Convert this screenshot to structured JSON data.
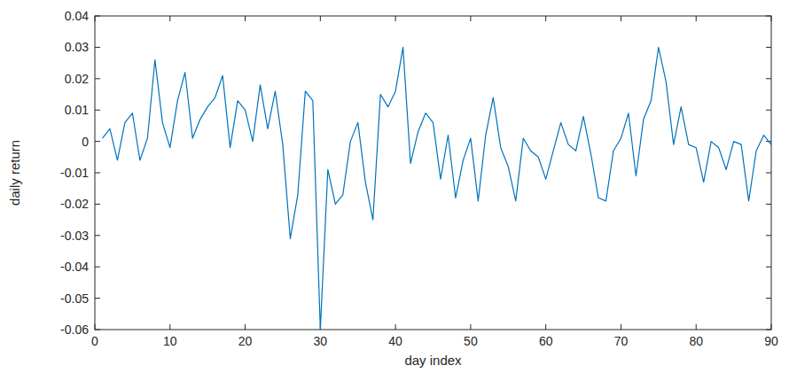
{
  "chart_data": {
    "type": "line",
    "x_label": "day index",
    "y_label": "daily return",
    "color": "#0072bd",
    "x": [
      1,
      2,
      3,
      4,
      5,
      6,
      7,
      8,
      9,
      10,
      11,
      12,
      13,
      14,
      15,
      16,
      17,
      18,
      19,
      20,
      21,
      22,
      23,
      24,
      25,
      26,
      27,
      28,
      29,
      30,
      31,
      32,
      33,
      34,
      35,
      36,
      37,
      38,
      39,
      40,
      41,
      42,
      43,
      44,
      45,
      46,
      47,
      48,
      49,
      50,
      51,
      52,
      53,
      54,
      55,
      56,
      57,
      58,
      59,
      60,
      61,
      62,
      63,
      64,
      65,
      66,
      67,
      68,
      69,
      70,
      71,
      72,
      73,
      74,
      75,
      76,
      77,
      78,
      79,
      80,
      81,
      82,
      83,
      84,
      85,
      86,
      87,
      88,
      89,
      90
    ],
    "values": [
      0.001,
      0.004,
      -0.006,
      0.006,
      0.009,
      -0.006,
      0.001,
      0.026,
      0.006,
      -0.002,
      0.013,
      0.022,
      0.001,
      0.007,
      0.011,
      0.014,
      0.021,
      -0.002,
      0.013,
      0.01,
      0.0,
      0.018,
      0.004,
      0.016,
      -0.001,
      -0.031,
      -0.017,
      0.016,
      0.013,
      -0.06,
      -0.009,
      -0.02,
      -0.017,
      0.0,
      0.006,
      -0.013,
      -0.025,
      0.015,
      0.011,
      0.016,
      0.03,
      -0.007,
      0.003,
      0.009,
      0.006,
      -0.012,
      0.002,
      -0.018,
      -0.006,
      0.001,
      -0.019,
      0.002,
      0.014,
      -0.002,
      -0.008,
      -0.019,
      0.001,
      -0.003,
      -0.005,
      -0.012,
      -0.003,
      0.006,
      -0.001,
      -0.003,
      0.008,
      -0.004,
      -0.018,
      -0.019,
      -0.003,
      0.001,
      0.009,
      -0.011,
      0.007,
      0.013,
      0.03,
      0.019,
      -0.001,
      0.011,
      -0.001,
      -0.002,
      -0.013,
      0.0,
      -0.002,
      -0.009,
      0.0,
      -0.001,
      -0.019,
      -0.003,
      0.002,
      -0.001
    ],
    "xlim": [
      0,
      90
    ],
    "xticks": [
      0,
      10,
      20,
      30,
      40,
      50,
      60,
      70,
      80,
      90
    ],
    "ylim": [
      -0.06,
      0.04
    ],
    "yticks": [
      -0.06,
      -0.05,
      -0.04,
      -0.03,
      -0.02,
      -0.01,
      0,
      0.01,
      0.02,
      0.03,
      0.04
    ],
    "grid": false
  }
}
